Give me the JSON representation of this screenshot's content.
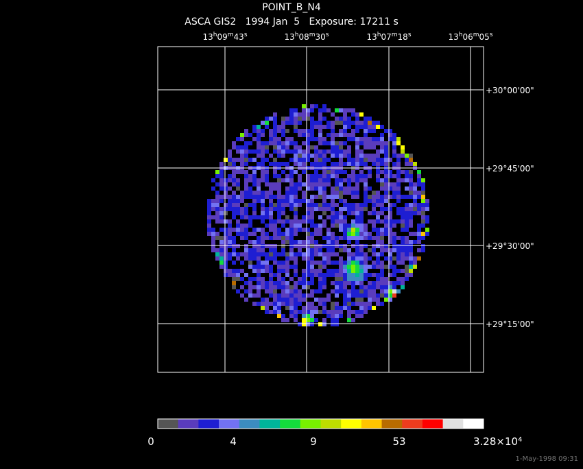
{
  "header": {
    "title": "POINT_B_N4",
    "subtitle": "ASCA GIS2   1994 Jan  5   Exposure: 17211 s"
  },
  "ra_labels": [
    "13h09m43s",
    "13h08m30s",
    "13h07m18s",
    "13h06m05s"
  ],
  "dec_labels": [
    "+30°00'00\"",
    "+29°45'00\"",
    "+29°30'00\"",
    "+29°15'00\""
  ],
  "colorbar": {
    "colors": [
      "#555555",
      "#5a3cbc",
      "#1e1ed2",
      "#7272f2",
      "#3c8cc0",
      "#00b49a",
      "#14dc3c",
      "#78f000",
      "#bede00",
      "#ffff00",
      "#ffc400",
      "#b86c00",
      "#ee3c1e",
      "#ff0000",
      "#e0e0e0",
      "#ffffff"
    ],
    "labels": [
      "0",
      "4",
      "9",
      "53"
    ],
    "max_label": {
      "mantissa": "3.28×10",
      "exponent": "4"
    }
  },
  "footer": "1-May-1998 09:31"
}
